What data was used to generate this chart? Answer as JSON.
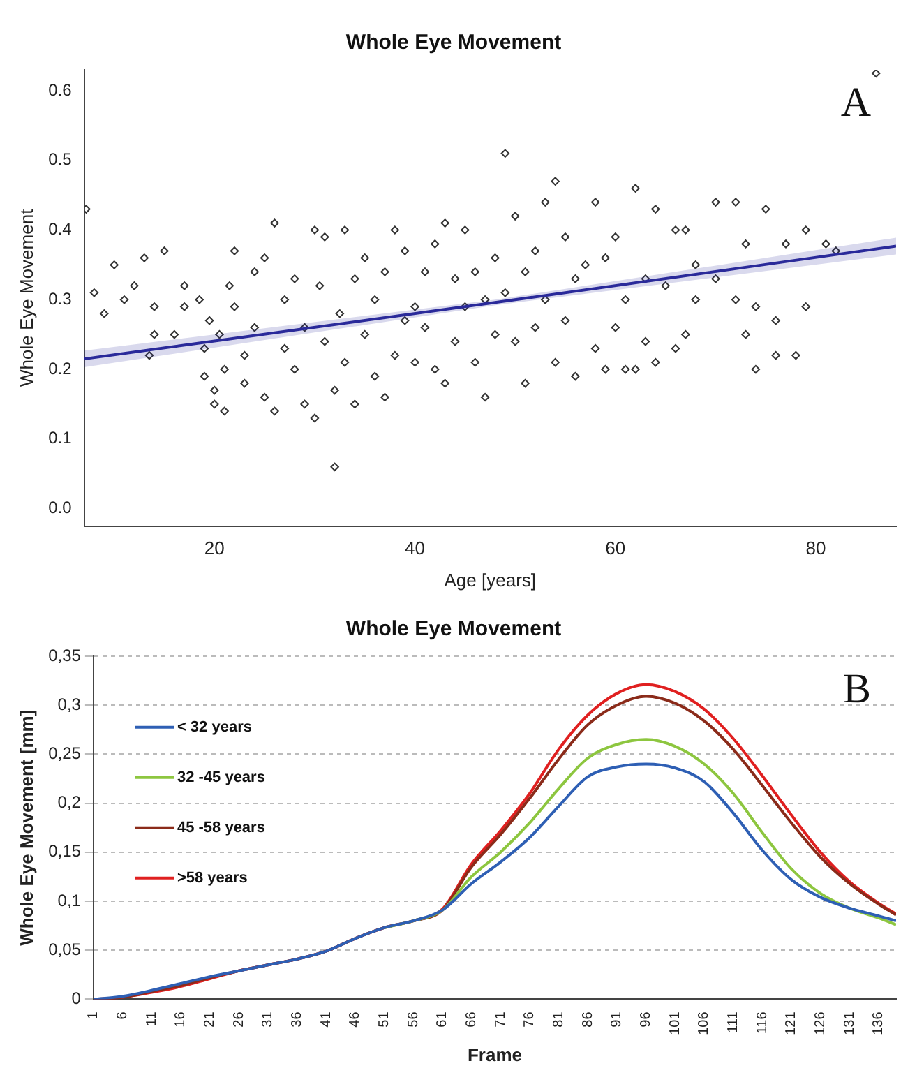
{
  "chart_data": [
    {
      "type": "scatter",
      "title": "Whole Eye Movement",
      "xlabel": "Age [years]",
      "ylabel": "Whole Eye Movement",
      "annotations": [
        "A"
      ],
      "xlim": [
        7,
        88
      ],
      "ylim": [
        -0.025,
        0.63
      ],
      "xticks": [
        20,
        40,
        60,
        80
      ],
      "yticks": [
        {
          "value": 0,
          "label": "0.0"
        },
        0.1,
        0.2,
        0.3,
        0.4,
        0.5,
        0.6
      ],
      "grid": false,
      "series": [
        {
          "type": "scatter",
          "marker": "diamond",
          "color": "#333333",
          "x": [
            7.2,
            8,
            9,
            10,
            11,
            12,
            13,
            14,
            14,
            15,
            13.5,
            16,
            17,
            17,
            18.5,
            19,
            19.5,
            19,
            20,
            20,
            20.5,
            21,
            21,
            21.5,
            22,
            22,
            23,
            23,
            24,
            24,
            25,
            25,
            26,
            26,
            27,
            27,
            28,
            28,
            29,
            29,
            30,
            30,
            30.5,
            31,
            31,
            32,
            32,
            32.5,
            33,
            33,
            34,
            34,
            35,
            35,
            36,
            36,
            37,
            37,
            38,
            38,
            39,
            39,
            40,
            40,
            41,
            41,
            42,
            42,
            43,
            43,
            44,
            44,
            45,
            45,
            46,
            46,
            47,
            47,
            48,
            48,
            49,
            49,
            50,
            50,
            51,
            51,
            52,
            52,
            53,
            53,
            54,
            54,
            55,
            55,
            56,
            56,
            57,
            58,
            58,
            59,
            59,
            60,
            60,
            61,
            61,
            62,
            62,
            63,
            63,
            64,
            64,
            65,
            66,
            66,
            67,
            67,
            68,
            68,
            70,
            70,
            72,
            72,
            73,
            73,
            74,
            74,
            75,
            76,
            76,
            77,
            78,
            79,
            79,
            81,
            82,
            86
          ],
          "values": [
            0.43,
            0.31,
            0.28,
            0.35,
            0.3,
            0.32,
            0.36,
            0.25,
            0.29,
            0.37,
            0.22,
            0.25,
            0.32,
            0.29,
            0.3,
            0.23,
            0.27,
            0.19,
            0.15,
            0.17,
            0.25,
            0.2,
            0.14,
            0.32,
            0.37,
            0.29,
            0.22,
            0.18,
            0.26,
            0.34,
            0.36,
            0.16,
            0.41,
            0.14,
            0.3,
            0.23,
            0.33,
            0.2,
            0.26,
            0.15,
            0.4,
            0.13,
            0.32,
            0.24,
            0.39,
            0.06,
            0.17,
            0.28,
            0.21,
            0.4,
            0.33,
            0.15,
            0.25,
            0.36,
            0.19,
            0.3,
            0.16,
            0.34,
            0.4,
            0.22,
            0.37,
            0.27,
            0.29,
            0.21,
            0.34,
            0.26,
            0.38,
            0.2,
            0.41,
            0.18,
            0.33,
            0.24,
            0.29,
            0.4,
            0.21,
            0.34,
            0.16,
            0.3,
            0.36,
            0.25,
            0.51,
            0.31,
            0.42,
            0.24,
            0.18,
            0.34,
            0.37,
            0.26,
            0.44,
            0.3,
            0.47,
            0.21,
            0.39,
            0.27,
            0.19,
            0.33,
            0.35,
            0.44,
            0.23,
            0.2,
            0.36,
            0.39,
            0.26,
            0.3,
            0.2,
            0.46,
            0.2,
            0.33,
            0.24,
            0.43,
            0.21,
            0.32,
            0.4,
            0.23,
            0.25,
            0.4,
            0.35,
            0.3,
            0.44,
            0.33,
            0.44,
            0.3,
            0.25,
            0.38,
            0.29,
            0.2,
            0.43,
            0.27,
            0.22,
            0.38,
            0.22,
            0.4,
            0.29,
            0.38,
            0.37,
            0.625
          ]
        },
        {
          "type": "line",
          "color": "#2a2a9a",
          "x": [
            7,
            48,
            88
          ],
          "values": [
            0.215,
            0.296,
            0.377
          ],
          "lower": [
            0.203,
            0.292,
            0.365
          ],
          "upper": [
            0.227,
            0.3,
            0.389
          ]
        }
      ]
    },
    {
      "type": "line",
      "title": "Whole Eye Movement",
      "xlabel": "Frame",
      "ylabel": "Whole Eye Movement [mm]",
      "annotations": [
        "B"
      ],
      "xlim": [
        1,
        139
      ],
      "ylim": [
        0,
        0.35
      ],
      "xticks": [
        1,
        6,
        11,
        16,
        21,
        26,
        31,
        36,
        41,
        46,
        51,
        56,
        61,
        66,
        71,
        76,
        81,
        86,
        91,
        96,
        101,
        106,
        111,
        116,
        121,
        126,
        131,
        136
      ],
      "yticks": [
        0,
        {
          "value": 0.05,
          "label": "0,05"
        },
        {
          "value": 0.1,
          "label": "0,1"
        },
        {
          "value": 0.15,
          "label": "0,15"
        },
        {
          "value": 0.2,
          "label": "0,2"
        },
        {
          "value": 0.25,
          "label": "0,25"
        },
        {
          "value": 0.3,
          "label": "0,3"
        },
        {
          "value": 0.35,
          "label": "0,35"
        }
      ],
      "grid": "y",
      "legend": "left",
      "x": [
        1,
        6,
        11,
        16,
        21,
        26,
        31,
        36,
        41,
        46,
        51,
        56,
        61,
        66,
        71,
        76,
        81,
        86,
        91,
        96,
        101,
        106,
        111,
        116,
        121,
        126,
        131,
        136,
        139
      ],
      "series": [
        {
          "name": "< 32 years",
          "color": "#2e5fb4",
          "values": [
            0,
            0.003,
            0.009,
            0.016,
            0.023,
            0.029,
            0.035,
            0.041,
            0.049,
            0.062,
            0.073,
            0.08,
            0.091,
            0.118,
            0.14,
            0.165,
            0.197,
            0.227,
            0.237,
            0.24,
            0.236,
            0.222,
            0.19,
            0.152,
            0.122,
            0.104,
            0.093,
            0.085,
            0.08
          ]
        },
        {
          "name": "32 -45 years",
          "color": "#8dc63f",
          "values": [
            null,
            null,
            null,
            null,
            null,
            null,
            null,
            null,
            null,
            null,
            0.073,
            0.08,
            0.091,
            0.125,
            0.15,
            0.18,
            0.215,
            0.246,
            0.26,
            0.265,
            0.258,
            0.24,
            0.21,
            0.17,
            0.133,
            0.108,
            0.093,
            0.083,
            0.076
          ]
        },
        {
          "name": "45 -58 years",
          "color": "#8b2b1a",
          "values": [
            0,
            0.002,
            0.008,
            0.014,
            0.022,
            0.029,
            0.035,
            0.041,
            0.049,
            0.062,
            0.073,
            0.08,
            0.091,
            0.135,
            0.168,
            0.205,
            0.245,
            0.28,
            0.3,
            0.309,
            0.302,
            0.284,
            0.255,
            0.218,
            0.18,
            0.145,
            0.118,
            0.097,
            0.086
          ]
        },
        {
          "name": ">58 years",
          "color": "#e02020",
          "values": [
            0,
            0.002,
            0.007,
            0.013,
            0.021,
            0.029,
            0.035,
            0.041,
            0.049,
            0.062,
            0.073,
            0.08,
            0.092,
            0.138,
            0.172,
            0.21,
            0.255,
            0.29,
            0.312,
            0.321,
            0.314,
            0.296,
            0.266,
            0.228,
            0.188,
            0.15,
            0.12,
            0.098,
            0.087
          ]
        }
      ]
    }
  ]
}
